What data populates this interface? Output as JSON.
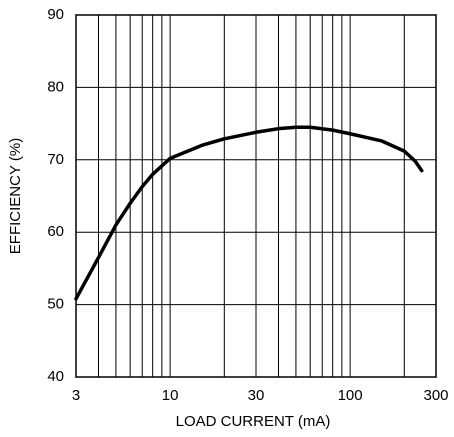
{
  "chart_data": {
    "type": "line",
    "xlabel": "LOAD CURRENT (mA)",
    "ylabel": "EFFICIENCY (%)",
    "xscale": "log",
    "xlim": [
      3,
      300
    ],
    "ylim": [
      40,
      90
    ],
    "xticks": [
      3,
      10,
      30,
      100,
      300
    ],
    "xminor": [
      4,
      5,
      6,
      7,
      8,
      9,
      20,
      40,
      50,
      60,
      70,
      80,
      90,
      200
    ],
    "yticks": [
      40,
      50,
      60,
      70,
      80,
      90
    ],
    "grid": true,
    "series": [
      {
        "color": "#000000",
        "x": [
          3,
          4,
          5,
          6,
          7,
          8,
          10,
          15,
          20,
          30,
          40,
          50,
          60,
          80,
          100,
          150,
          200,
          230,
          250
        ],
        "values": [
          50.8,
          56.5,
          61,
          64,
          66.3,
          68,
          70.2,
          72,
          72.9,
          73.8,
          74.3,
          74.5,
          74.5,
          74.1,
          73.6,
          72.6,
          71.2,
          69.8,
          68.5
        ]
      }
    ]
  }
}
